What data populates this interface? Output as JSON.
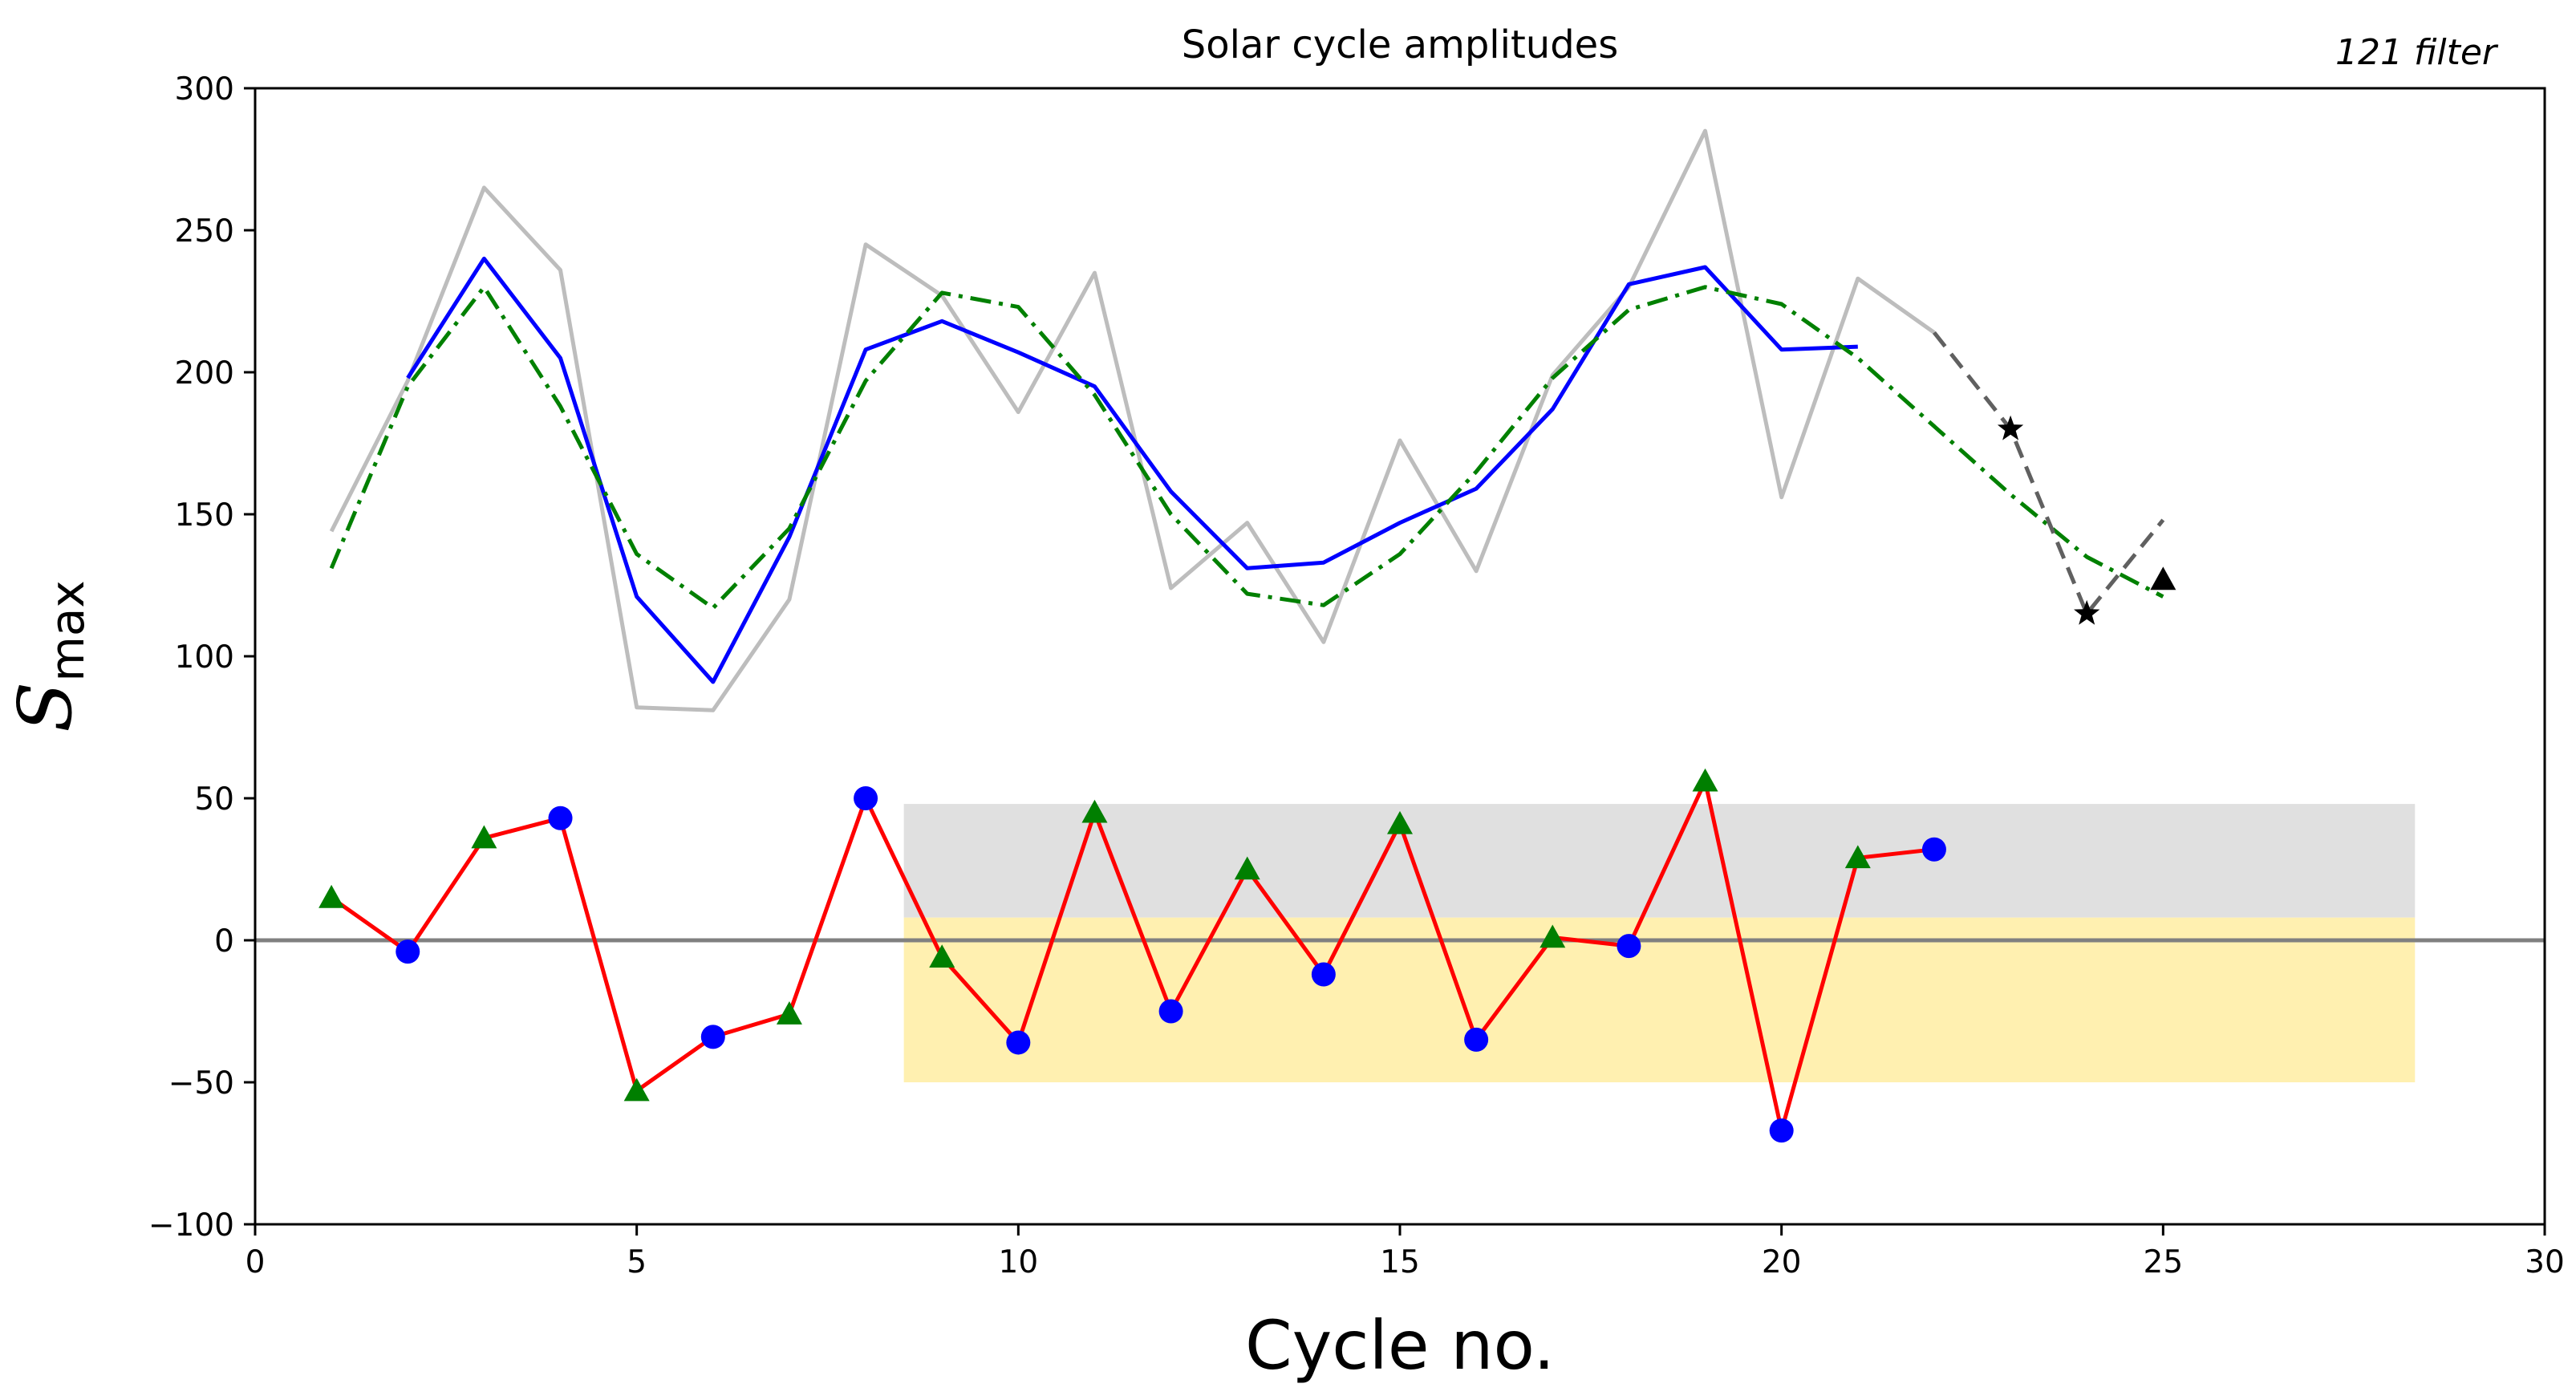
{
  "chart_data": {
    "type": "line",
    "title": "Solar cycle amplitudes",
    "annotation": "121 filter",
    "xlabel": "Cycle no.",
    "ylabel": {
      "main": "S",
      "sub": "max"
    },
    "xlim": [
      0,
      30
    ],
    "ylim": [
      -100,
      300
    ],
    "xticks": [
      0,
      5,
      10,
      15,
      20,
      25,
      30
    ],
    "xtick_labels": [
      "0",
      "5",
      "10",
      "15",
      "20",
      "25",
      "30"
    ],
    "yticks": [
      -100,
      -50,
      0,
      50,
      100,
      150,
      200,
      250,
      300
    ],
    "ytick_labels": [
      "−100",
      "−50",
      "0",
      "50",
      "100",
      "150",
      "200",
      "250",
      "300"
    ],
    "grid": false,
    "shaded_regions": [
      {
        "x": [
          8.5,
          28.3
        ],
        "y": [
          8,
          48
        ],
        "color": "#e0e0e0"
      },
      {
        "x": [
          8.5,
          28.3
        ],
        "y": [
          -50,
          8
        ],
        "color": "#fff0b0"
      }
    ],
    "reference_lines": [
      {
        "y": 0,
        "color": "#808080"
      }
    ],
    "series": [
      {
        "style": "line",
        "color": "#bdbdbd",
        "x": [
          1,
          2,
          3,
          4,
          5,
          6,
          7,
          8,
          9,
          10,
          11,
          12,
          13,
          14,
          15,
          16,
          17,
          18,
          19,
          20,
          21,
          22
        ],
        "y": [
          144,
          197,
          265,
          236,
          82,
          81,
          120,
          245,
          227,
          186,
          235,
          124,
          147,
          105,
          176,
          130,
          199,
          230,
          285,
          156,
          233,
          214
        ]
      },
      {
        "style": "line",
        "color": "#0000ff",
        "x": [
          2,
          3,
          4,
          5,
          6,
          7,
          8,
          9,
          10,
          11,
          12,
          13,
          14,
          15,
          16,
          17,
          18,
          19,
          20,
          21
        ],
        "y": [
          198,
          240,
          205,
          121,
          91,
          142,
          208,
          218,
          207,
          195,
          158,
          131,
          133,
          147,
          159,
          187,
          231,
          237,
          208,
          209
        ]
      },
      {
        "style": "dashdot",
        "color": "#008000",
        "x": [
          1,
          2,
          3,
          4,
          5,
          6,
          7,
          8,
          9,
          10,
          11,
          12,
          13,
          14,
          15,
          16,
          17,
          18,
          19,
          20,
          21,
          22,
          23,
          24,
          25
        ],
        "y": [
          131,
          195,
          230,
          188,
          136,
          117,
          145,
          197,
          228,
          223,
          192,
          150,
          122,
          118,
          136,
          165,
          198,
          222,
          230,
          224,
          205,
          181,
          157,
          135,
          121
        ]
      },
      {
        "style": "dashed",
        "color": "#606060",
        "x": [
          22,
          23,
          24,
          25
        ],
        "y": [
          214,
          180,
          115,
          148
        ]
      },
      {
        "style": "line",
        "color": "#ff0000",
        "x": [
          1,
          2,
          3,
          4,
          5,
          6,
          7,
          8,
          9,
          10,
          11,
          12,
          13,
          14,
          15,
          16,
          17,
          18,
          19,
          20,
          21,
          22
        ],
        "y": [
          15,
          -4,
          36,
          43,
          -53,
          -34,
          -26,
          50,
          -6,
          -36,
          45,
          -25,
          25,
          -12,
          41,
          -35,
          1,
          -2,
          56,
          -67,
          29,
          32
        ]
      }
    ],
    "markers": [
      {
        "shape": "circle",
        "color": "#0000ff",
        "x": [
          2,
          4,
          6,
          8,
          10,
          12,
          14,
          16,
          18,
          20,
          22
        ],
        "y": [
          -4,
          43,
          -34,
          50,
          -36,
          -25,
          -12,
          -35,
          -2,
          -67,
          32
        ]
      },
      {
        "shape": "triangle",
        "color": "#007f00",
        "x": [
          1,
          3,
          5,
          7,
          9,
          11,
          13,
          15,
          17,
          19,
          21
        ],
        "y": [
          15,
          36,
          -53,
          -26,
          -6,
          45,
          25,
          41,
          1,
          56,
          29
        ]
      },
      {
        "shape": "star",
        "color": "#000000",
        "x": [
          23,
          24
        ],
        "y": [
          180,
          115
        ]
      },
      {
        "shape": "triangle",
        "color": "#000000",
        "x": [
          25
        ],
        "y": [
          127
        ]
      }
    ]
  }
}
